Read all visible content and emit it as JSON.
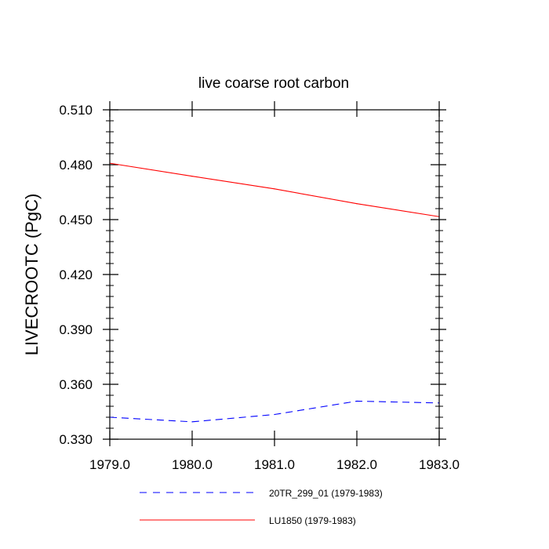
{
  "chart_data": {
    "type": "line",
    "title": "live coarse root carbon",
    "xlabel": "",
    "ylabel": "LIVECROOTC  (PgC)",
    "xlim": [
      1979,
      1983
    ],
    "ylim": [
      0.33,
      0.51
    ],
    "xticks": [
      "1979.0",
      "1980.0",
      "1981.0",
      "1982.0",
      "1983.0"
    ],
    "yticks": [
      "0.330",
      "0.360",
      "0.390",
      "0.420",
      "0.450",
      "0.480",
      "0.510"
    ],
    "x": [
      1979,
      1980,
      1981,
      1982,
      1983
    ],
    "legend_position": "bottom",
    "series": [
      {
        "name": "20TR_299_01 (1979-1983)",
        "values": [
          0.342,
          0.3395,
          0.3435,
          0.3508,
          0.3498
        ],
        "color": "#0000ff",
        "style": "dashed"
      },
      {
        "name": "LU1850 (1979-1983)",
        "values": [
          0.4808,
          0.4737,
          0.4668,
          0.4587,
          0.4516
        ],
        "color": "#ff0000",
        "style": "solid"
      }
    ]
  }
}
